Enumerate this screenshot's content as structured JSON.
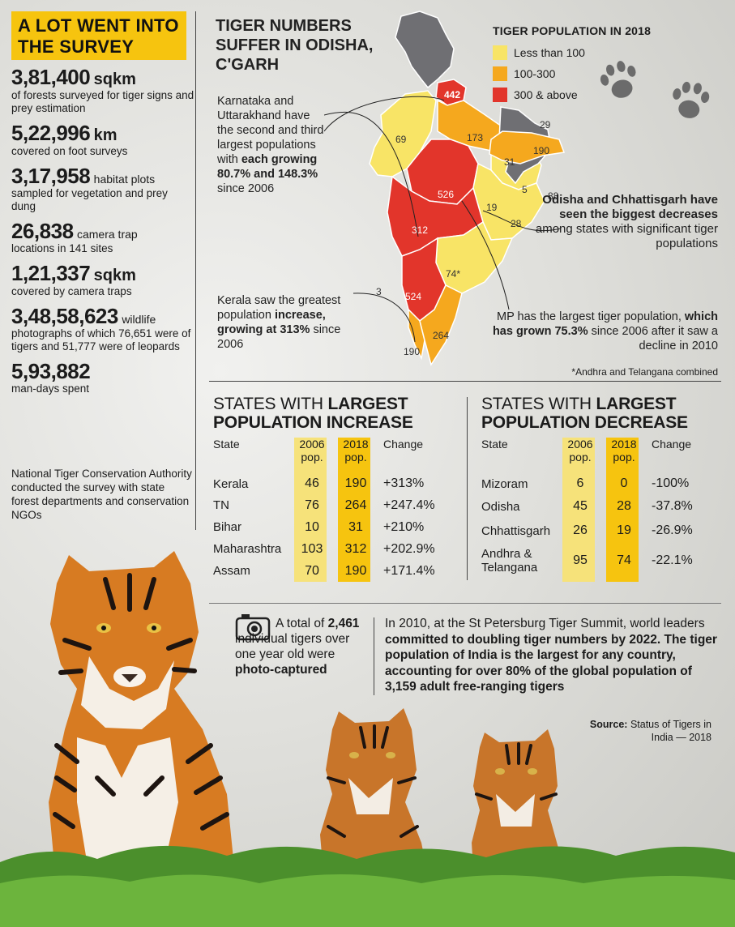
{
  "headline": "A LOT WENT INTO THE SURVEY",
  "stats": [
    {
      "value": "3,81,400",
      "unit": "sqkm",
      "inline": "",
      "desc": "of forests surveyed for tiger signs and prey estimation"
    },
    {
      "value": "5,22,996",
      "unit": "km",
      "inline": "",
      "desc": "covered on foot surveys"
    },
    {
      "value": "3,17,958",
      "unit": "",
      "inline": "habitat plots",
      "desc": "sampled for vegetation and prey dung"
    },
    {
      "value": "26,838",
      "unit": "",
      "inline": "camera trap",
      "desc": "locations in 141 sites"
    },
    {
      "value": "1,21,337",
      "unit": "sqkm",
      "inline": "",
      "desc": "covered by camera traps"
    },
    {
      "value": "3,48,58,623",
      "unit": "",
      "inline": "wildlife",
      "desc": "photographs of which 76,651 were of tigers and 51,777 were of leopards"
    },
    {
      "value": "5,93,882",
      "unit": "",
      "inline": "",
      "desc": "man-days spent"
    }
  ],
  "survey_note": "National Tiger Conservation Authority conducted the survey with state forest departments and conservation NGOs",
  "map": {
    "title": "TIGER NUMBERS SUFFER IN ODISHA, C'GARH",
    "legend_title": "TIGER POPULATION IN 2018",
    "legend": [
      {
        "label": "Less than 100",
        "color": "#f8e466"
      },
      {
        "label": "100-300",
        "color": "#f5a81e"
      },
      {
        "label": "300 & above",
        "color": "#e2352b"
      }
    ],
    "labels": [
      "442",
      "69",
      "173",
      "29",
      "190",
      "31",
      "526",
      "5",
      "88",
      "19",
      "28",
      "312",
      "74*",
      "3",
      "524",
      "264",
      "190"
    ],
    "ann_karnataka_pre": "Karnataka and Uttarakhand have the second and third largest populations with ",
    "ann_karnataka_bold": "each growing 80.7% and 148.3%",
    "ann_karnataka_post": " since 2006",
    "ann_kerala_pre": "Kerala saw the greatest population ",
    "ann_kerala_bold": "increase, growing at 313%",
    "ann_kerala_post": " since 2006",
    "ann_odisha_bold": "Odisha and Chhattisgarh have seen the biggest decreases",
    "ann_odisha_post": " among states with significant tiger populations",
    "ann_mp_pre": "MP has the largest tiger population, ",
    "ann_mp_bold": "which has grown 75.3%",
    "ann_mp_post": " since 2006 after it saw a decline in 2010",
    "footnote": "*Andhra and Telangana combined"
  },
  "increase": {
    "title_light": "STATES WITH ",
    "title_bold_1": "LARGEST",
    "title_bold_2": "POPULATION INCREASE",
    "headers": {
      "state": "State",
      "y2006": "2006 pop.",
      "y2018": "2018 pop.",
      "change": "Change"
    },
    "rows": [
      {
        "state": "Kerala",
        "p2006": "46",
        "p2018": "190",
        "change": "+313%"
      },
      {
        "state": "TN",
        "p2006": "76",
        "p2018": "264",
        "change": "+247.4%"
      },
      {
        "state": "Bihar",
        "p2006": "10",
        "p2018": "31",
        "change": "+210%"
      },
      {
        "state": "Maharashtra",
        "p2006": "103",
        "p2018": "312",
        "change": "+202.9%"
      },
      {
        "state": "Assam",
        "p2006": "70",
        "p2018": "190",
        "change": "+171.4%"
      }
    ]
  },
  "decrease": {
    "title_light": "STATES WITH ",
    "title_bold_1": "LARGEST",
    "title_bold_2": "POPULATION DECREASE",
    "headers": {
      "state": "State",
      "y2006": "2006 pop.",
      "y2018": "2018 pop.",
      "change": "Change"
    },
    "rows": [
      {
        "state": "Mizoram",
        "p2006": "6",
        "p2018": "0",
        "change": "-100%"
      },
      {
        "state": "Odisha",
        "p2006": "45",
        "p2018": "28",
        "change": "-37.8%"
      },
      {
        "state": "Chhattisgarh",
        "p2006": "26",
        "p2018": "19",
        "change": "-26.9%"
      },
      {
        "state": "Andhra & Telangana",
        "p2006": "95",
        "p2018": "74",
        "change": "-22.1%"
      }
    ]
  },
  "captured_pre": "A total of ",
  "captured_num": "2,461",
  "captured_mid": " individual tigers over one year old were ",
  "captured_bold": "photo-captured",
  "summit_pre": "In 2010, at the St Petersburg Tiger Summit, world leaders ",
  "summit_bold": "committed to doubling tiger numbers by 2022. The tiger population of India is the largest for any country, accounting for over 80% of the global population of 3,159 adult free-ranging tigers",
  "source_label": "Source:",
  "source_text": " Status of Tigers in India — 2018"
}
